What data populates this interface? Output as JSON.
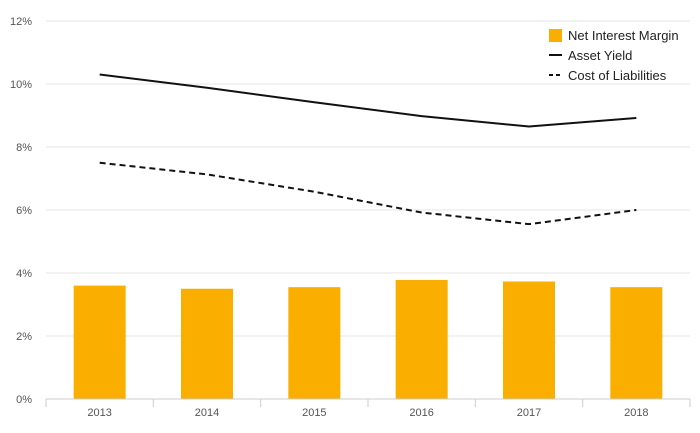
{
  "chart_data": {
    "type": "bar",
    "categories": [
      "2013",
      "2014",
      "2015",
      "2016",
      "2017",
      "2018"
    ],
    "ylim": [
      0,
      12
    ],
    "yticks": [
      {
        "value": 0,
        "label": "0%"
      },
      {
        "value": 2,
        "label": "2%"
      },
      {
        "value": 4,
        "label": "4%"
      },
      {
        "value": 6,
        "label": "6%"
      },
      {
        "value": 8,
        "label": "8%"
      },
      {
        "value": 10,
        "label": "10%"
      },
      {
        "value": 12,
        "label": "12%"
      }
    ],
    "grid": true,
    "legend_position": "top-right",
    "series": [
      {
        "name": "Net Interest Margin",
        "kind": "bar",
        "color": "#F9AE00",
        "values": [
          3.6,
          3.5,
          3.55,
          3.78,
          3.73,
          3.55
        ]
      },
      {
        "name": "Asset Yield",
        "kind": "line",
        "style": "solid",
        "color": "#111111",
        "values": [
          10.3,
          9.88,
          9.42,
          8.98,
          8.65,
          8.92
        ]
      },
      {
        "name": "Cost of Liabilities",
        "kind": "line",
        "style": "dashed",
        "color": "#111111",
        "values": [
          7.5,
          7.13,
          6.58,
          5.92,
          5.55,
          6.0
        ]
      }
    ]
  }
}
